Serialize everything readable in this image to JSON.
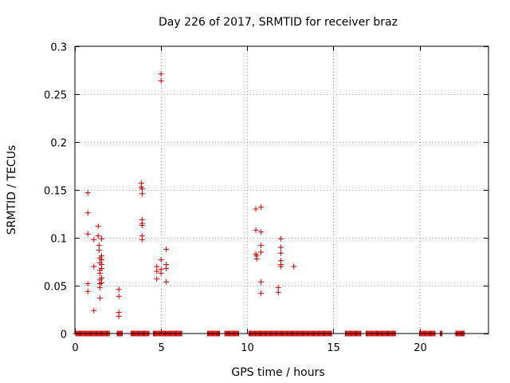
{
  "chart_data": {
    "type": "scatter",
    "title": "Day 226 of 2017, SRMTID for receiver braz",
    "xlabel": "GPS time / hours",
    "ylabel": "SRMTID / TECUs",
    "xlim": [
      0,
      24
    ],
    "ylim": [
      0,
      0.3
    ],
    "xticks": [
      0,
      5,
      10,
      15,
      20
    ],
    "yticks": [
      0,
      0.05,
      0.1,
      0.15,
      0.2,
      0.25,
      0.3
    ],
    "grid": true,
    "marker": "+",
    "color": "#cc0000",
    "series": [
      {
        "name": "SRMTID",
        "points": [
          [
            0.75,
            0.147
          ],
          [
            0.75,
            0.126
          ],
          [
            0.75,
            0.104
          ],
          [
            0.75,
            0.052
          ],
          [
            0.75,
            0.044
          ],
          [
            1.1,
            0.098
          ],
          [
            1.1,
            0.07
          ],
          [
            1.1,
            0.024
          ],
          [
            1.35,
            0.112
          ],
          [
            1.35,
            0.102
          ],
          [
            1.4,
            0.092
          ],
          [
            1.4,
            0.087
          ],
          [
            1.45,
            0.079
          ],
          [
            1.45,
            0.074
          ],
          [
            1.45,
            0.066
          ],
          [
            1.45,
            0.063
          ],
          [
            1.45,
            0.056
          ],
          [
            1.45,
            0.052
          ],
          [
            1.45,
            0.048
          ],
          [
            1.45,
            0.037
          ],
          [
            1.55,
            0.099
          ],
          [
            1.55,
            0.081
          ],
          [
            1.55,
            0.077
          ],
          [
            1.55,
            0.072
          ],
          [
            1.55,
            0.068
          ],
          [
            1.55,
            0.058
          ],
          [
            1.55,
            0.053
          ],
          [
            2.55,
            0.046
          ],
          [
            2.55,
            0.039
          ],
          [
            2.55,
            0.022
          ],
          [
            2.55,
            0.018
          ],
          [
            3.85,
            0.157
          ],
          [
            3.85,
            0.153
          ],
          [
            3.9,
            0.151
          ],
          [
            3.9,
            0.146
          ],
          [
            3.9,
            0.119
          ],
          [
            3.9,
            0.115
          ],
          [
            3.9,
            0.113
          ],
          [
            3.9,
            0.102
          ],
          [
            3.9,
            0.098
          ],
          [
            4.75,
            0.07
          ],
          [
            4.75,
            0.065
          ],
          [
            4.75,
            0.057
          ],
          [
            5.0,
            0.271
          ],
          [
            5.0,
            0.264
          ],
          [
            5.0,
            0.077
          ],
          [
            5.0,
            0.067
          ],
          [
            5.0,
            0.063
          ],
          [
            5.3,
            0.088
          ],
          [
            5.3,
            0.072
          ],
          [
            5.3,
            0.068
          ],
          [
            5.3,
            0.054
          ],
          [
            10.5,
            0.13
          ],
          [
            10.5,
            0.108
          ],
          [
            10.5,
            0.083
          ],
          [
            10.55,
            0.081
          ],
          [
            10.55,
            0.078
          ],
          [
            10.8,
            0.132
          ],
          [
            10.8,
            0.106
          ],
          [
            10.8,
            0.092
          ],
          [
            10.8,
            0.085
          ],
          [
            10.8,
            0.054
          ],
          [
            10.8,
            0.042
          ],
          [
            11.8,
            0.048
          ],
          [
            11.8,
            0.043
          ],
          [
            11.95,
            0.099
          ],
          [
            11.95,
            0.09
          ],
          [
            11.95,
            0.084
          ],
          [
            11.95,
            0.076
          ],
          [
            11.95,
            0.072
          ],
          [
            11.95,
            0.07
          ],
          [
            12.7,
            0.07
          ]
        ],
        "zero_ranges": [
          [
            0.05,
            2.0
          ],
          [
            2.45,
            2.75
          ],
          [
            3.25,
            4.3
          ],
          [
            4.55,
            6.2
          ],
          [
            7.7,
            8.4
          ],
          [
            8.7,
            9.5
          ],
          [
            10.1,
            14.9
          ],
          [
            15.7,
            16.6
          ],
          [
            16.9,
            18.6
          ],
          [
            20.0,
            20.9
          ],
          [
            21.2,
            21.3
          ],
          [
            22.1,
            22.6
          ]
        ]
      }
    ]
  }
}
